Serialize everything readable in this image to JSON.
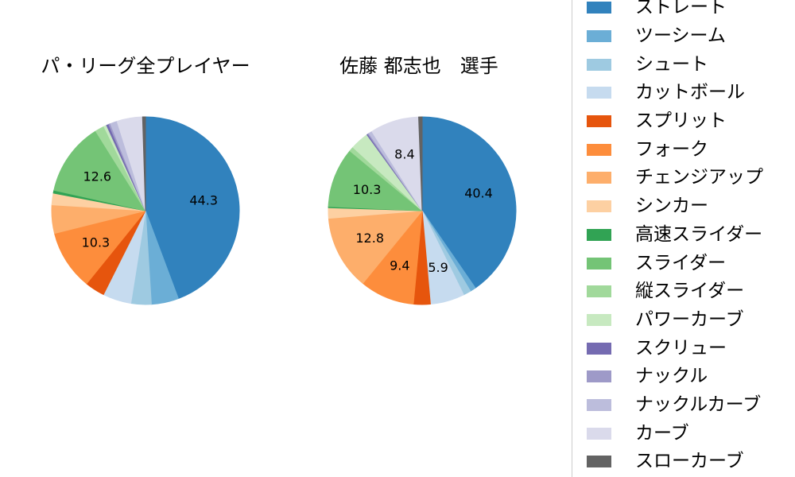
{
  "figure": {
    "background": "#ffffff",
    "palette_name": "tab20c"
  },
  "pitch_types": [
    {
      "key": "straight",
      "label": "ストレート",
      "color": "#3182bd"
    },
    {
      "key": "two-seam",
      "label": "ツーシーム",
      "color": "#6baed6"
    },
    {
      "key": "shoot",
      "label": "シュート",
      "color": "#9ecae1"
    },
    {
      "key": "cut-ball",
      "label": "カットボール",
      "color": "#c6dbef"
    },
    {
      "key": "split",
      "label": "スプリット",
      "color": "#e6550d"
    },
    {
      "key": "fork",
      "label": "フォーク",
      "color": "#fd8d3c"
    },
    {
      "key": "changeup",
      "label": "チェンジアップ",
      "color": "#fdae6b"
    },
    {
      "key": "sinker",
      "label": "シンカー",
      "color": "#fdd0a2"
    },
    {
      "key": "fast-slider",
      "label": "高速スライダー",
      "color": "#31a354"
    },
    {
      "key": "slider",
      "label": "スライダー",
      "color": "#74c476"
    },
    {
      "key": "vertical-slider",
      "label": "縦スライダー",
      "color": "#a1d99b"
    },
    {
      "key": "power-curve",
      "label": "パワーカーブ",
      "color": "#c7e9c0"
    },
    {
      "key": "screw",
      "label": "スクリュー",
      "color": "#756bb1"
    },
    {
      "key": "knuckle",
      "label": "ナックル",
      "color": "#9e9ac8"
    },
    {
      "key": "knuckle-curve",
      "label": "ナックルカーブ",
      "color": "#bcbddc"
    },
    {
      "key": "curve",
      "label": "カーブ",
      "color": "#dadaeb"
    },
    {
      "key": "slow-curve",
      "label": "スローカーブ",
      "color": "#636363"
    }
  ],
  "chart_data": [
    {
      "type": "pie",
      "title": "パ・リーグ全プレイヤー",
      "categories": [
        "ストレート",
        "ツーシーム",
        "シュート",
        "カットボール",
        "スプリット",
        "フォーク",
        "チェンジアップ",
        "シンカー",
        "高速スライダー",
        "スライダー",
        "縦スライダー",
        "パワーカーブ",
        "スクリュー",
        "ナックル",
        "ナックルカーブ",
        "カーブ",
        "スローカーブ"
      ],
      "values": [
        44.3,
        4.7,
        3.5,
        4.9,
        3.4,
        10.3,
        4.9,
        2.0,
        0.5,
        12.6,
        1.6,
        0.5,
        0.4,
        0.3,
        1.2,
        4.4,
        0.5
      ],
      "labels_shown": [
        "44.3",
        "10.3",
        "12.6"
      ],
      "start_angle": "12-oclock",
      "direction": "clockwise",
      "label_threshold_pct": 5,
      "pct_label_distance": 0.63
    },
    {
      "type": "pie",
      "title": "佐藤 都志也　選手",
      "categories": [
        "ストレート",
        "ツーシーム",
        "シュート",
        "カットボール",
        "スプリット",
        "フォーク",
        "チェンジアップ",
        "シンカー",
        "高速スライダー",
        "スライダー",
        "縦スライダー",
        "パワーカーブ",
        "スクリュー",
        "ナックル",
        "ナックルカーブ",
        "カーブ",
        "スローカーブ"
      ],
      "values": [
        40.4,
        1.0,
        1.3,
        5.9,
        2.9,
        9.4,
        12.8,
        1.8,
        0.2,
        10.3,
        0.8,
        3.2,
        0.2,
        0.2,
        0.6,
        8.4,
        0.6
      ],
      "labels_shown": [
        "40.4",
        "5.9",
        "9.4",
        "12.8",
        "10.3",
        "8.4"
      ],
      "start_angle": "12-oclock",
      "direction": "clockwise",
      "label_threshold_pct": 5,
      "pct_label_distance": 0.63
    }
  ],
  "legend": {
    "position": "right",
    "clipped": "extends beyond right and top/bottom edges of viewport"
  }
}
